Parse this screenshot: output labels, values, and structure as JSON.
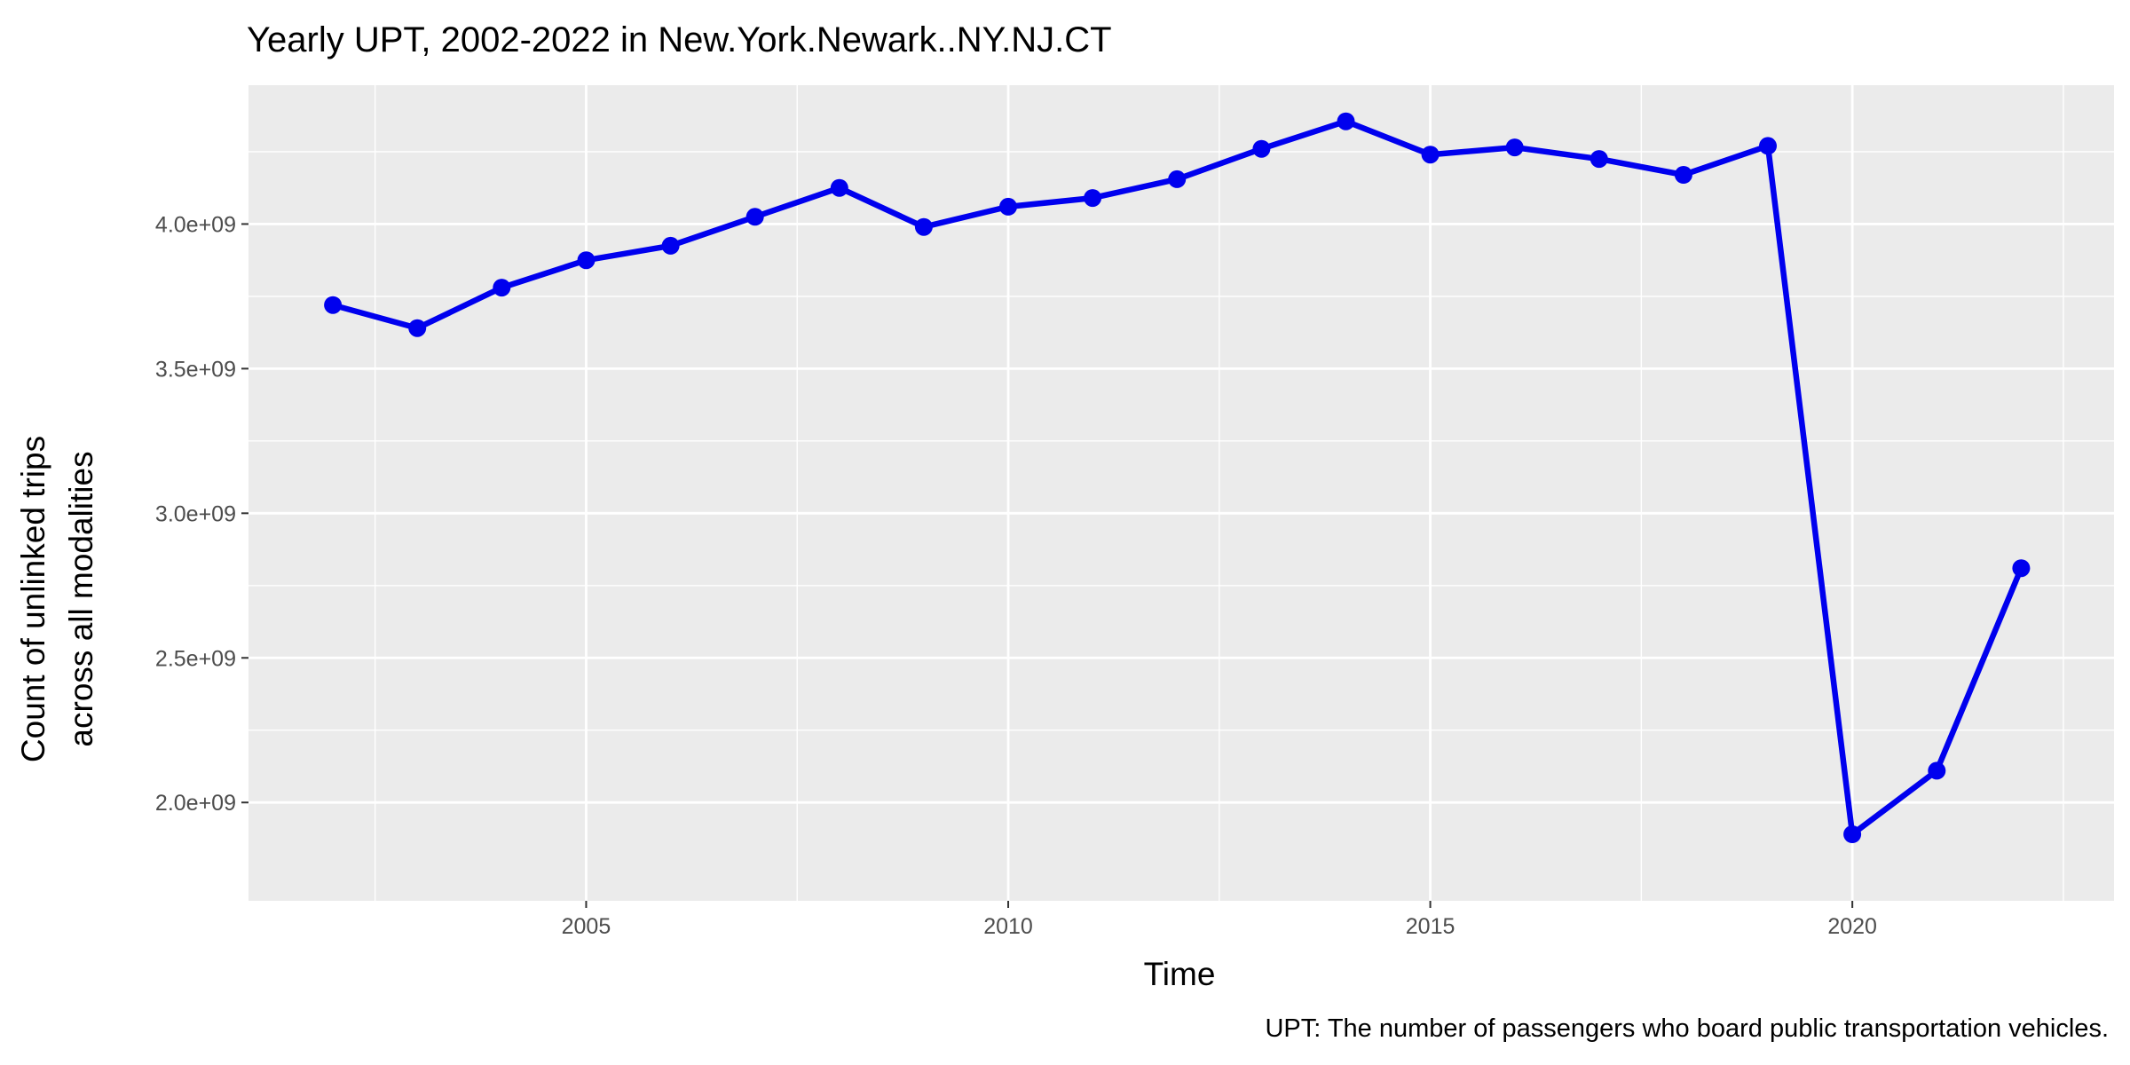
{
  "chart_data": {
    "type": "line",
    "title": "Yearly UPT, 2002-2022 in New.York.Newark..NY.NJ.CT",
    "xlabel": "Time",
    "ylabel_lines": [
      "Count of unlinked trips",
      "across all modalities"
    ],
    "caption": "UPT: The number of passengers who board public transportation vehicles.",
    "xlim": [
      2001,
      2023.1
    ],
    "ylim": [
      1660000000,
      4480000000
    ],
    "x_ticks": [
      2005,
      2010,
      2015,
      2020
    ],
    "x_tick_labels": [
      "2005",
      "2010",
      "2015",
      "2020"
    ],
    "x_minor_ticks": [
      2002.5,
      2007.5,
      2012.5,
      2017.5,
      2022.5
    ],
    "y_ticks": [
      2000000000,
      2500000000,
      3000000000,
      3500000000,
      4000000000
    ],
    "y_tick_labels": [
      "2.0e+09",
      "2.5e+09",
      "3.0e+09",
      "3.5e+09",
      "4.0e+09"
    ],
    "y_minor_ticks": [
      2250000000,
      2750000000,
      3250000000,
      3750000000,
      4250000000
    ],
    "grid": true,
    "series": [
      {
        "color": "#0000ee",
        "x": [
          2002,
          2003,
          2004,
          2005,
          2006,
          2007,
          2008,
          2009,
          2010,
          2011,
          2012,
          2013,
          2014,
          2015,
          2016,
          2017,
          2018,
          2019,
          2020,
          2021,
          2022
        ],
        "y": [
          3720000000,
          3640000000,
          3780000000,
          3875000000,
          3925000000,
          4025000000,
          4125000000,
          3990000000,
          4060000000,
          4090000000,
          4155000000,
          4260000000,
          4355000000,
          4240000000,
          4265000000,
          4225000000,
          4170000000,
          4270000000,
          1890000000,
          2110000000,
          2810000000
        ]
      }
    ]
  }
}
